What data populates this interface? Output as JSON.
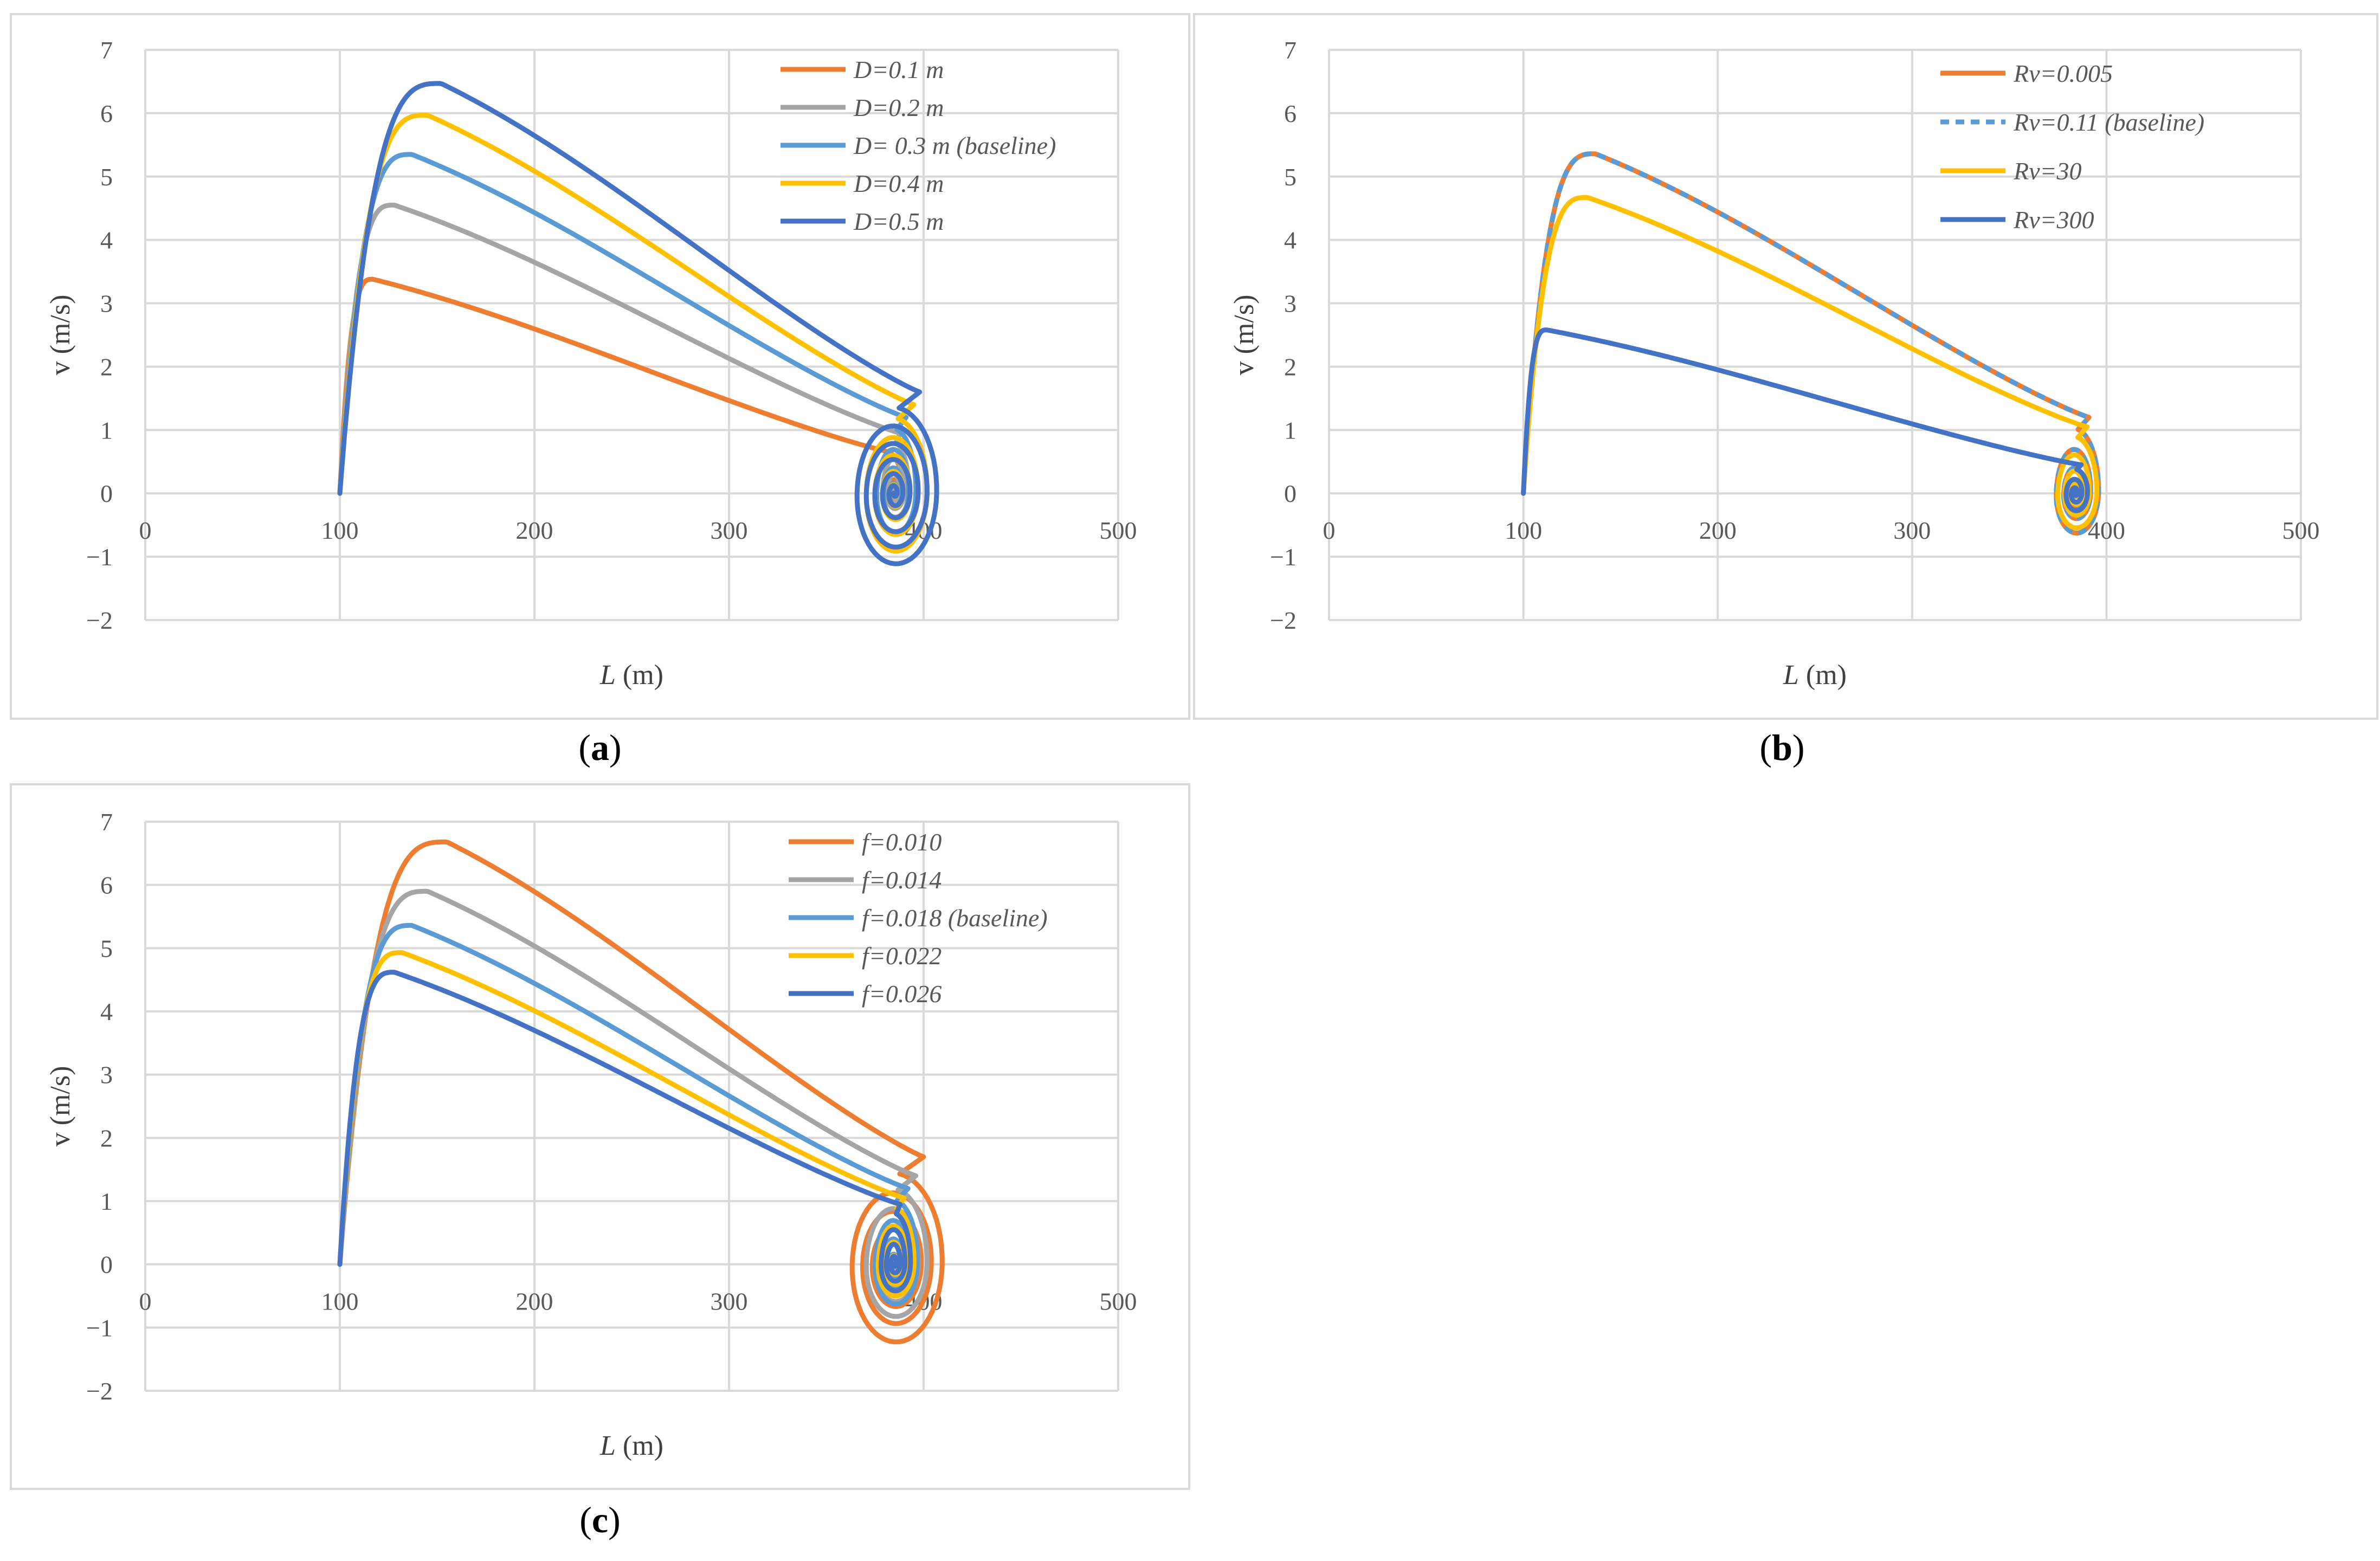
{
  "colors": {
    "orange": "#ED7D31",
    "gray": "#A5A5A5",
    "lightblue": "#5B9BD5",
    "yellow": "#FFC000",
    "blue": "#4472C4",
    "grid": "#D9D9D9",
    "frame": "#D9D9D9"
  },
  "chart_data": [
    {
      "id": "a",
      "type": "line",
      "caption": {
        "open": "(",
        "letter": "a",
        "close": ")"
      },
      "xlabel": {
        "var": "L",
        "unit": "(m)"
      },
      "ylabel": "v  (m/s)",
      "xlim": [
        0,
        500
      ],
      "ylim": [
        -2,
        7
      ],
      "xticks": [
        "0",
        "100",
        "200",
        "300",
        "400",
        "500"
      ],
      "yticks": [
        "−2",
        "−1",
        "0",
        "1",
        "2",
        "3",
        "4",
        "5",
        "6",
        "7"
      ],
      "series": [
        {
          "name": "D=0.1 m",
          "color": "orange",
          "x0": 100,
          "peak_x": 117,
          "peak_v": 3.38,
          "x_end": 383,
          "v_end": 0.65,
          "x_max": 389,
          "v_min": -0.15,
          "loop_x": 385,
          "loops": 4
        },
        {
          "name": "D=0.2 m",
          "color": "gray",
          "x0": 100,
          "peak_x": 128,
          "peak_v": 4.55,
          "x_end": 388,
          "v_end": 0.95,
          "x_max": 393,
          "v_min": -0.45,
          "loop_x": 385,
          "loops": 4
        },
        {
          "name": "D= 0.3 m (baseline)",
          "color": "lightblue",
          "x0": 100,
          "peak_x": 137,
          "peak_v": 5.35,
          "x_end": 391,
          "v_end": 1.2,
          "x_max": 397,
          "v_min": -0.75,
          "loop_x": 385,
          "loops": 4
        },
        {
          "name": "D=0.4 m",
          "color": "yellow",
          "x0": 100,
          "peak_x": 145,
          "peak_v": 5.97,
          "x_end": 395,
          "v_end": 1.4,
          "x_max": 403,
          "v_min": -1.05,
          "loop_x": 385,
          "loops": 5
        },
        {
          "name": "D=0.5 m",
          "color": "blue",
          "x0": 100,
          "peak_x": 152,
          "peak_v": 6.47,
          "x_end": 398,
          "v_end": 1.6,
          "x_max": 408,
          "v_min": -1.25,
          "loop_x": 385,
          "loops": 6
        }
      ]
    },
    {
      "id": "b",
      "type": "line",
      "caption": {
        "open": "(",
        "letter": "b",
        "close": ")"
      },
      "xlabel": {
        "var": "L",
        "unit": "(m)"
      },
      "ylabel": "v  (m/s)",
      "xlim": [
        0,
        500
      ],
      "ylim": [
        -2,
        7
      ],
      "xticks": [
        "0",
        "100",
        "200",
        "300",
        "400",
        "500"
      ],
      "yticks": [
        "−2",
        "−1",
        "0",
        "1",
        "2",
        "3",
        "4",
        "5",
        "6",
        "7"
      ],
      "series": [
        {
          "name": "Rv=0.005",
          "color": "orange",
          "x0": 100,
          "peak_x": 137,
          "peak_v": 5.36,
          "x_end": 391,
          "v_end": 1.2,
          "x_max": 397,
          "v_min": -0.75,
          "loop_x": 384,
          "loops": 4
        },
        {
          "name": "Rv=0.11 (baseline)",
          "color": "lightblue",
          "dashed": true,
          "x0": 100,
          "peak_x": 137,
          "peak_v": 5.36,
          "x_end": 391,
          "v_end": 1.2,
          "x_max": 397,
          "v_min": -0.75,
          "loop_x": 384,
          "loops": 4
        },
        {
          "name": "Rv=30",
          "color": "yellow",
          "x0": 100,
          "peak_x": 133,
          "peak_v": 4.67,
          "x_end": 390,
          "v_end": 1.05,
          "x_max": 396,
          "v_min": -0.65,
          "loop_x": 384,
          "loops": 4
        },
        {
          "name": "Rv=300",
          "color": "blue",
          "x0": 100,
          "peak_x": 112,
          "peak_v": 2.58,
          "x_end": 387,
          "v_end": 0.45,
          "x_max": 391,
          "v_min": -0.35,
          "loop_x": 384,
          "loops": 3
        }
      ]
    },
    {
      "id": "c",
      "type": "line",
      "caption": {
        "open": "(",
        "letter": "c",
        "close": ")"
      },
      "xlabel": {
        "var": "L",
        "unit": "(m)"
      },
      "ylabel": "v  (m/s)",
      "xlim": [
        0,
        500
      ],
      "ylim": [
        -2,
        7
      ],
      "xticks": [
        "0",
        "100",
        "200",
        "300",
        "400",
        "500"
      ],
      "yticks": [
        "−2",
        "−1",
        "0",
        "1",
        "2",
        "3",
        "4",
        "5",
        "6",
        "7"
      ],
      "series": [
        {
          "name": "f=0.010",
          "color": "orange",
          "x0": 100,
          "peak_x": 155,
          "peak_v": 6.68,
          "x_end": 400,
          "v_end": 1.7,
          "x_max": 411,
          "v_min": -1.38,
          "loop_x": 385,
          "loops": 6
        },
        {
          "name": "f=0.014",
          "color": "gray",
          "x0": 100,
          "peak_x": 145,
          "peak_v": 5.9,
          "x_end": 396,
          "v_end": 1.4,
          "x_max": 403,
          "v_min": -0.95,
          "loop_x": 385,
          "loops": 5
        },
        {
          "name": "f=0.018 (baseline)",
          "color": "lightblue",
          "x0": 100,
          "peak_x": 137,
          "peak_v": 5.36,
          "x_end": 392,
          "v_end": 1.2,
          "x_max": 398,
          "v_min": -0.75,
          "loop_x": 385,
          "loops": 4
        },
        {
          "name": "f=0.022",
          "color": "yellow",
          "x0": 100,
          "peak_x": 132,
          "peak_v": 4.93,
          "x_end": 390,
          "v_end": 1.05,
          "x_max": 396,
          "v_min": -0.6,
          "loop_x": 385,
          "loops": 4
        },
        {
          "name": "f=0.026",
          "color": "blue",
          "x0": 100,
          "peak_x": 128,
          "peak_v": 4.62,
          "x_end": 388,
          "v_end": 0.95,
          "x_max": 394,
          "v_min": -0.5,
          "loop_x": 385,
          "loops": 4
        }
      ]
    }
  ]
}
